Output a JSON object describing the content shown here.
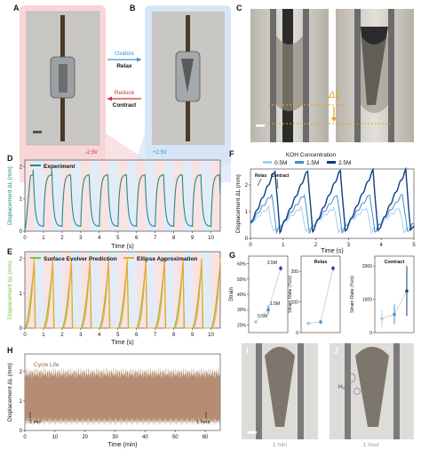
{
  "panels": {
    "A": "A",
    "B": "B",
    "C": "C",
    "D": "D",
    "E": "E",
    "F": "F",
    "G": "G",
    "H": "H",
    "I": "I",
    "J": "J"
  },
  "ab": {
    "oxidize": "Oxidize",
    "relax": "Relax",
    "reduce": "Reduce",
    "contract": "Contract",
    "v_left": "-2.5V",
    "v_right": "+2.5V",
    "red_tint": "#f6d6d6",
    "blue_tint": "#d6e6f6",
    "red": "#d1303a",
    "blue": "#3a8fd6"
  },
  "c": {
    "delta_label": "ΔL",
    "delta_color": "#e8a317"
  },
  "d": {
    "legend": "Experiment",
    "ylabel": "Displacement ΔL (mm)",
    "xlabel": "Time (s)",
    "color": "#1f8c86",
    "xticks": [
      "0",
      "1",
      "2",
      "3",
      "4",
      "5",
      "6",
      "7",
      "8",
      "9",
      "10"
    ],
    "yticks": [
      "0",
      "1",
      "2"
    ]
  },
  "e": {
    "legend1": "Surface Evolver Prediction",
    "legend2": "Ellipse Approximation",
    "ylabel": "Displacement ΔL (mm)",
    "xlabel": "Time (s)",
    "color1": "#7ac143",
    "color2": "#f5a623",
    "xticks": [
      "0",
      "1",
      "2",
      "3",
      "4",
      "5",
      "6",
      "7",
      "8",
      "9",
      "10"
    ],
    "yticks": [
      "0",
      "1",
      "2"
    ]
  },
  "f": {
    "title": "KOH Concentration",
    "series": [
      "0.5M",
      "1.5M",
      "2.5M"
    ],
    "colors": [
      "#a8cfea",
      "#3f8fcf",
      "#0f3c82"
    ],
    "relax": "Relax",
    "contract": "Contract",
    "ylabel": "Displacement ΔL (mm)",
    "xlabel": "Time (s)",
    "xticks": [
      "0",
      "1",
      "2",
      "3",
      "4",
      "5"
    ],
    "yticks": [
      "0",
      "1",
      "2"
    ]
  },
  "g": {
    "strain": {
      "ylabel": "Strain",
      "yticks": [
        "20%",
        "30%",
        "40%",
        "50%",
        "60%"
      ],
      "labels": [
        "0.5M",
        "1.5M",
        "2.5M"
      ]
    },
    "relax": {
      "title": "Relax",
      "ylabel": "Strain Rate (%/s)",
      "yticks": [
        "0",
        "100",
        "200"
      ]
    },
    "contract": {
      "title": "Contract",
      "ylabel": "Strain Rate (%/s)",
      "yticks": [
        "0",
        "1000",
        "2000"
      ]
    }
  },
  "h": {
    "label": "Cycle Life",
    "ylabel": "Displacement ΔL (mm)",
    "xlabel": "Time (min)",
    "xticks": [
      "0",
      "10",
      "20",
      "30",
      "40",
      "50",
      "60"
    ],
    "yticks": [
      "0",
      "1",
      "2"
    ],
    "ann_left": "1 min",
    "ann_right": "1 hour",
    "color": "#b48d72"
  },
  "ij": {
    "i_caption": "1 min",
    "j_caption": "1 hour",
    "h2": "H₂"
  },
  "chart_data": [
    {
      "type": "line",
      "panel": "D",
      "series": [
        {
          "name": "Experiment"
        }
      ],
      "xlabel": "Time (s)",
      "ylabel": "Displacement ΔL (mm)",
      "xlim": [
        0,
        10.5
      ],
      "ylim": [
        0,
        2
      ]
    },
    {
      "type": "line",
      "panel": "E",
      "series": [
        {
          "name": "Surface Evolver Prediction"
        },
        {
          "name": "Ellipse Approximation"
        }
      ],
      "xlabel": "Time (s)",
      "ylabel": "Displacement ΔL (mm)",
      "xlim": [
        0,
        10.5
      ],
      "ylim": [
        0,
        2
      ]
    },
    {
      "type": "line",
      "panel": "F",
      "series": [
        {
          "name": "0.5M"
        },
        {
          "name": "1.5M"
        },
        {
          "name": "2.5M"
        }
      ],
      "xlabel": "Time (s)",
      "ylabel": "Displacement ΔL (mm)",
      "xlim": [
        0,
        5
      ],
      "ylim": [
        0,
        2.5
      ]
    },
    {
      "type": "scatter",
      "panel": "G-strain",
      "categories": [
        "0.5M",
        "1.5M",
        "2.5M"
      ],
      "values": [
        22,
        30,
        57
      ],
      "ylabel": "Strain",
      "ylim": [
        20,
        60
      ]
    },
    {
      "type": "scatter",
      "panel": "G-relax",
      "categories": [
        "0.5M",
        "1.5M",
        "2.5M"
      ],
      "values": [
        30,
        35,
        210
      ],
      "ylabel": "Strain Rate (%/s)",
      "ylim": [
        0,
        250
      ]
    },
    {
      "type": "scatter",
      "panel": "G-contract",
      "categories": [
        "0.5M",
        "1.5M",
        "2.5M"
      ],
      "values": [
        420,
        550,
        1250
      ],
      "ylabel": "Strain Rate (%/s)",
      "ylim": [
        0,
        2300
      ]
    },
    {
      "type": "area",
      "panel": "H",
      "series": [
        {
          "name": "Cycle Life"
        }
      ],
      "xlabel": "Time (min)",
      "ylabel": "Displacement ΔL (mm)",
      "xlim": [
        0,
        65
      ],
      "ylim": [
        0,
        2.5
      ]
    }
  ]
}
